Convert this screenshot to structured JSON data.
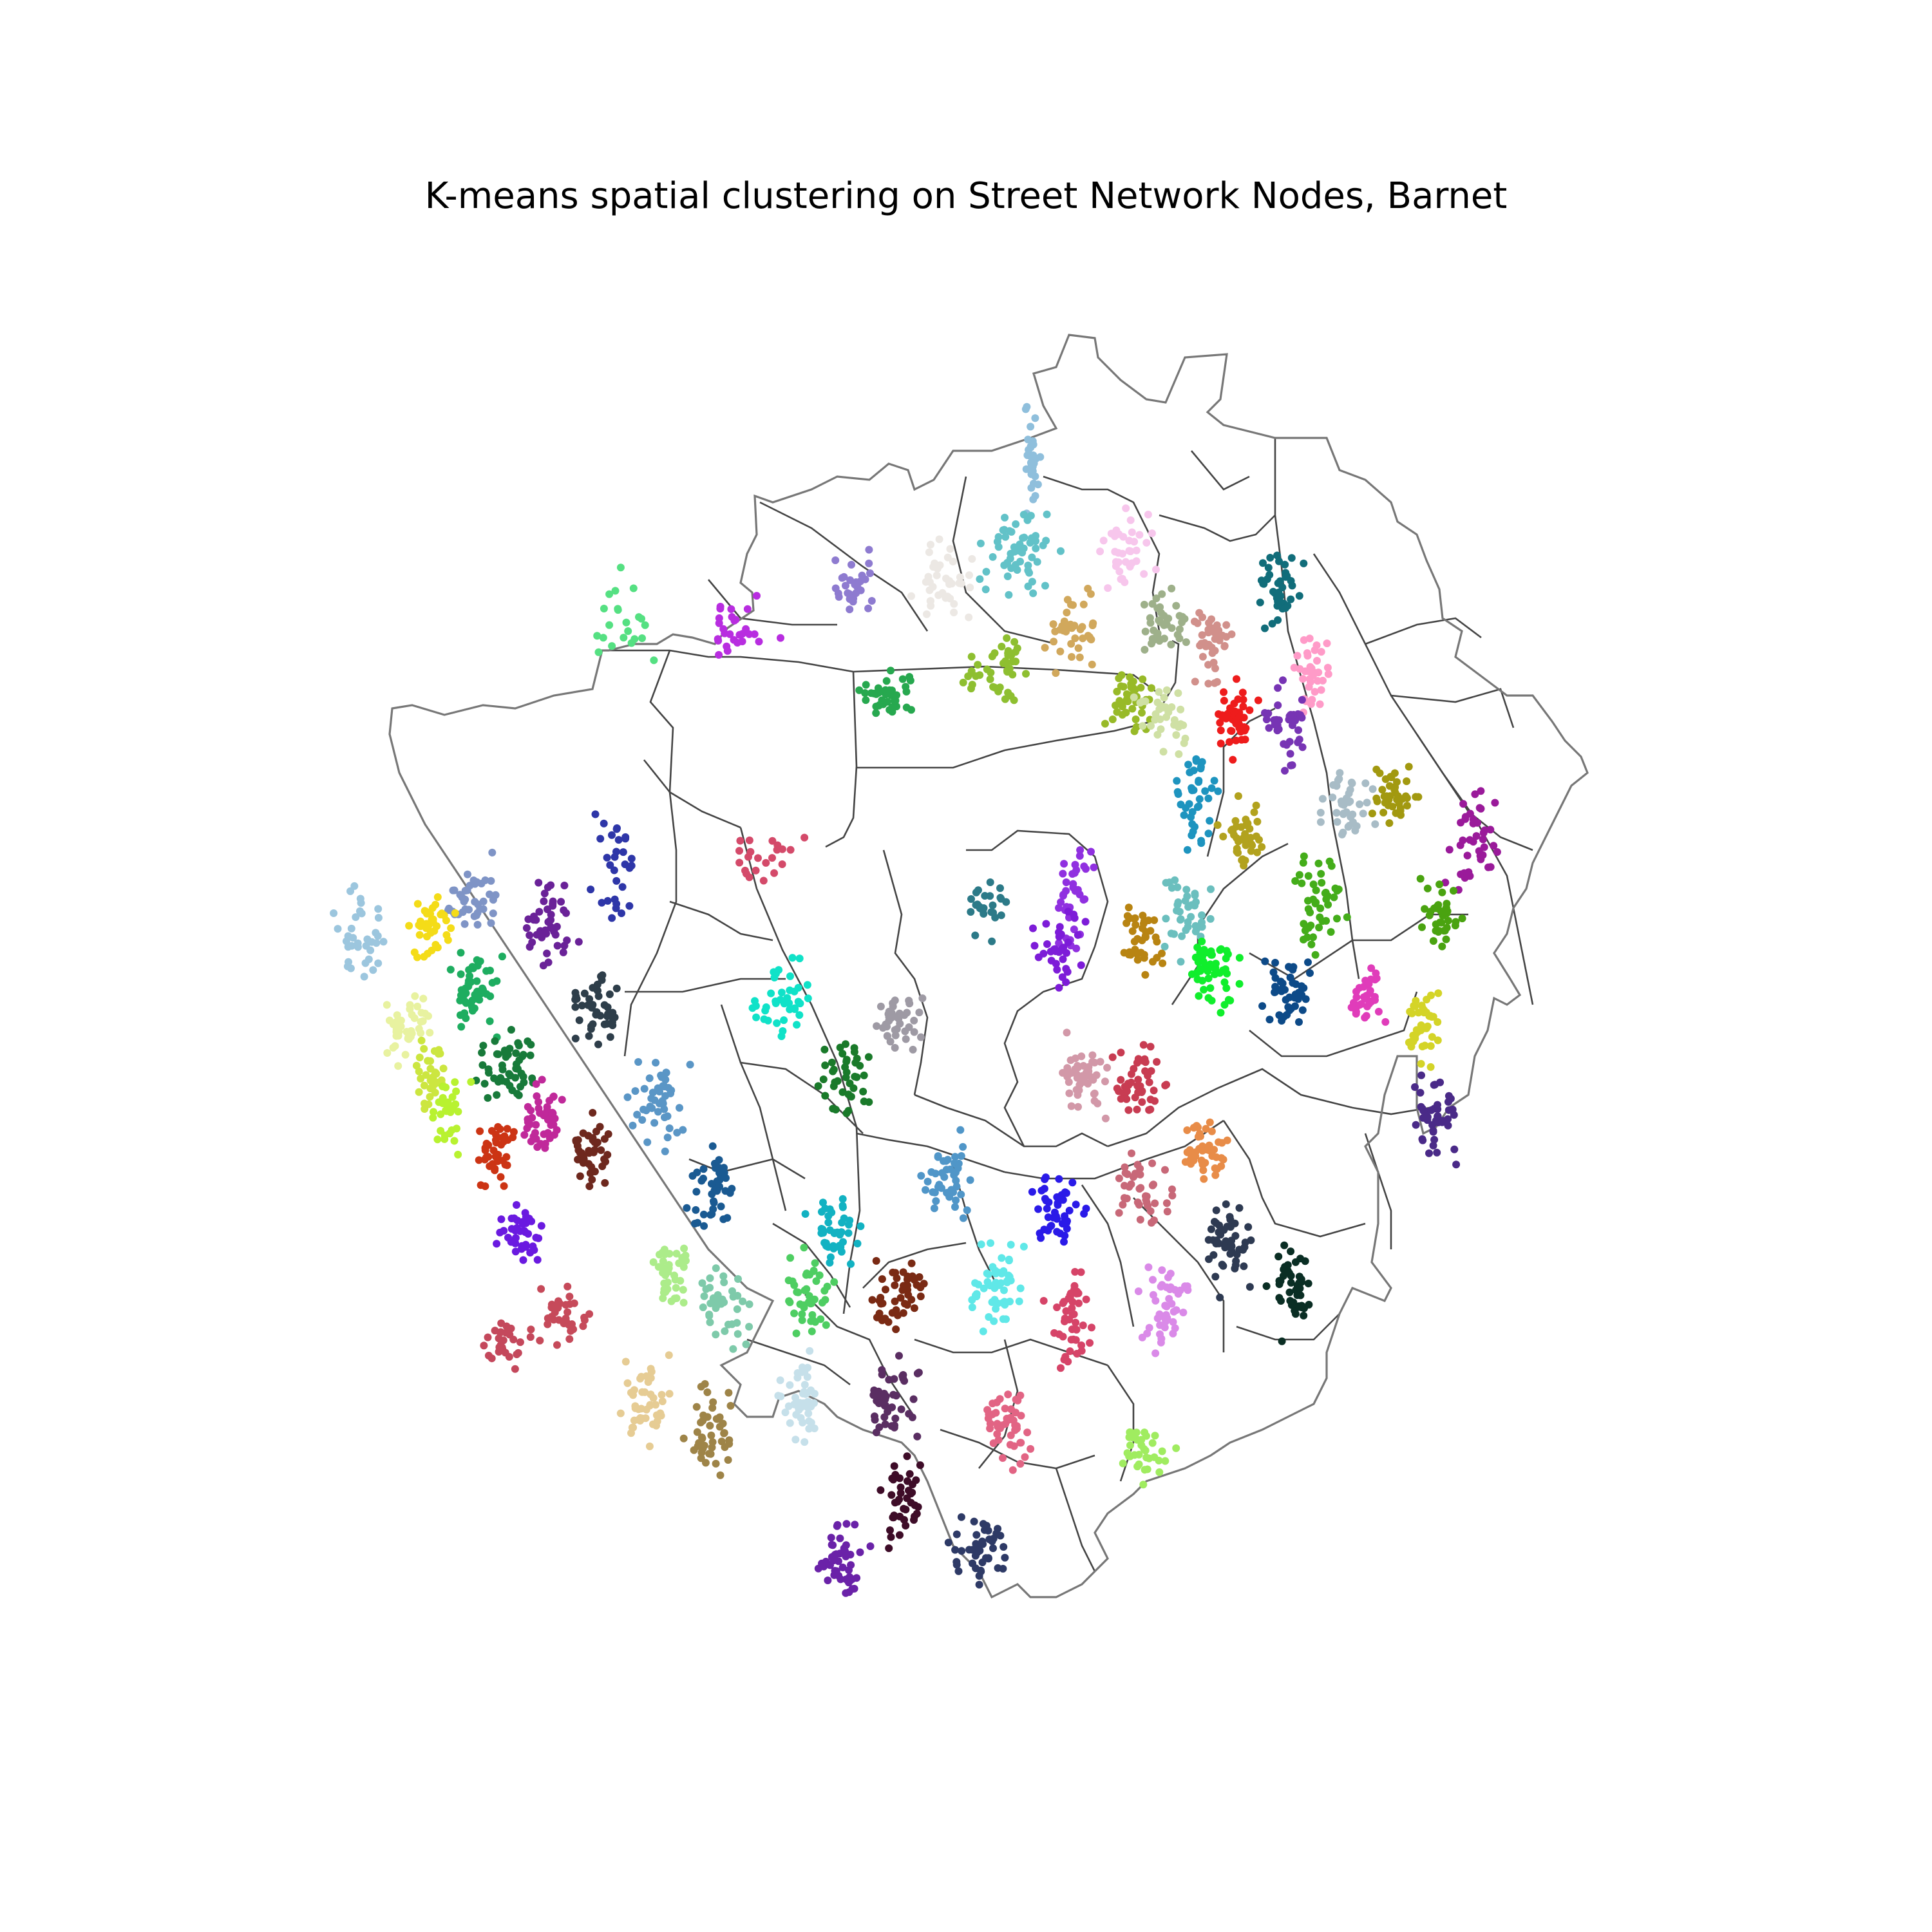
{
  "title": "K-means spatial clustering on Street Network Nodes, Barnet",
  "map": {
    "projection": "lon/lat",
    "extent": {
      "lon_min": -0.306,
      "lon_max": -0.129,
      "lat_min": 51.555,
      "lat_max": 51.671
    },
    "boundary_color": "#777777",
    "ward_line_color": "#444444",
    "marker": "filled-circle",
    "legend": "none",
    "axes": "hidden"
  },
  "clusters": [
    {
      "center": [
        -0.2111,
        51.66
      ],
      "spread": [
        0.002,
        0.0055
      ],
      "color": "#8fbfdc",
      "n": 30
    },
    {
      "center": [
        -0.2133,
        51.651
      ],
      "spread": [
        0.0055,
        0.004
      ],
      "color": "#62c2c8",
      "n": 55
    },
    {
      "center": [
        -0.1973,
        51.6515
      ],
      "spread": [
        0.0045,
        0.0035
      ],
      "color": "#f7c6ec",
      "n": 40
    },
    {
      "center": [
        -0.2244,
        51.648
      ],
      "spread": [
        0.0045,
        0.0035
      ],
      "color": "#ece8e4",
      "n": 40
    },
    {
      "center": [
        -0.2373,
        51.648
      ],
      "spread": [
        0.0035,
        0.003
      ],
      "color": "#8e7bd0",
      "n": 30
    },
    {
      "center": [
        -0.2542,
        51.644
      ],
      "spread": [
        0.006,
        0.003
      ],
      "color": "#b82de0",
      "n": 28
    },
    {
      "center": [
        -0.272,
        51.645
      ],
      "spread": [
        0.005,
        0.006
      ],
      "color": "#55e082",
      "n": 22
    },
    {
      "center": [
        -0.232,
        51.638
      ],
      "spread": [
        0.004,
        0.0025
      ],
      "color": "#27a84f",
      "n": 40
    },
    {
      "center": [
        -0.216,
        51.6405
      ],
      "spread": [
        0.005,
        0.003
      ],
      "color": "#8ebf30",
      "n": 45
    },
    {
      "center": [
        -0.205,
        51.644
      ],
      "spread": [
        0.004,
        0.0035
      ],
      "color": "#d1a85c",
      "n": 40
    },
    {
      "center": [
        -0.192,
        51.645
      ],
      "spread": [
        0.004,
        0.0035
      ],
      "color": "#9eb08a",
      "n": 40
    },
    {
      "center": [
        -0.185,
        51.643
      ],
      "spread": [
        0.0035,
        0.004
      ],
      "color": "#d1908b",
      "n": 40
    },
    {
      "center": [
        -0.175,
        51.648
      ],
      "spread": [
        0.0035,
        0.004
      ],
      "color": "#116d7a",
      "n": 40
    },
    {
      "center": [
        -0.17,
        51.64
      ],
      "spread": [
        0.003,
        0.004
      ],
      "color": "#ff9bc8",
      "n": 35
    },
    {
      "center": [
        -0.196,
        51.638
      ],
      "spread": [
        0.004,
        0.0035
      ],
      "color": "#98ba28",
      "n": 40
    },
    {
      "center": [
        -0.192,
        51.636
      ],
      "spread": [
        0.004,
        0.0035
      ],
      "color": "#cfe0a4",
      "n": 35
    },
    {
      "center": [
        -0.181,
        51.636
      ],
      "spread": [
        0.003,
        0.0035
      ],
      "color": "#ee1c1c",
      "n": 45
    },
    {
      "center": [
        -0.174,
        51.635
      ],
      "spread": [
        0.003,
        0.004
      ],
      "color": "#7734b4",
      "n": 35
    },
    {
      "center": [
        -0.187,
        51.628
      ],
      "spread": [
        0.003,
        0.005
      ],
      "color": "#1e94bf",
      "n": 40
    },
    {
      "center": [
        -0.18,
        51.625
      ],
      "spread": [
        0.0035,
        0.0035
      ],
      "color": "#b2a21e",
      "n": 40
    },
    {
      "center": [
        -0.165,
        51.628
      ],
      "spread": [
        0.004,
        0.0035
      ],
      "color": "#a8bcc6",
      "n": 40
    },
    {
      "center": [
        -0.158,
        51.629
      ],
      "spread": [
        0.004,
        0.0035
      ],
      "color": "#a29910",
      "n": 40
    },
    {
      "center": [
        -0.146,
        51.625
      ],
      "spread": [
        0.004,
        0.005
      ],
      "color": "#9a1a9a",
      "n": 40
    },
    {
      "center": [
        -0.188,
        51.618
      ],
      "spread": [
        0.004,
        0.0045
      ],
      "color": "#6bbfbe",
      "n": 40
    },
    {
      "center": [
        -0.169,
        51.619
      ],
      "spread": [
        0.004,
        0.0045
      ],
      "color": "#44ad1a",
      "n": 45
    },
    {
      "center": [
        -0.151,
        51.618
      ],
      "spread": [
        0.003,
        0.0035
      ],
      "color": "#4aa310",
      "n": 35
    },
    {
      "center": [
        -0.205,
        51.62
      ],
      "spread": [
        0.004,
        0.005
      ],
      "color": "#9030e0",
      "n": 40
    },
    {
      "center": [
        -0.207,
        51.615
      ],
      "spread": [
        0.004,
        0.004
      ],
      "color": "#7d1cd8",
      "n": 35
    },
    {
      "center": [
        -0.195,
        51.615
      ],
      "spread": [
        0.003,
        0.0035
      ],
      "color": "#b88412",
      "n": 40
    },
    {
      "center": [
        -0.185,
        51.612
      ],
      "spread": [
        0.004,
        0.004
      ],
      "color": "#10ee2c",
      "n": 50
    },
    {
      "center": [
        -0.173,
        51.611
      ],
      "spread": [
        0.004,
        0.004
      ],
      "color": "#0d4a88",
      "n": 45
    },
    {
      "center": [
        -0.162,
        51.611
      ],
      "spread": [
        0.003,
        0.0035
      ],
      "color": "#e03cba",
      "n": 35
    },
    {
      "center": [
        -0.154,
        51.608
      ],
      "spread": [
        0.003,
        0.0035
      ],
      "color": "#d4d428",
      "n": 40
    },
    {
      "center": [
        -0.152,
        51.599
      ],
      "spread": [
        0.003,
        0.0045
      ],
      "color": "#4a2a88",
      "n": 45
    },
    {
      "center": [
        -0.218,
        51.619
      ],
      "spread": [
        0.004,
        0.0035
      ],
      "color": "#2c7a88",
      "n": 25
    },
    {
      "center": [
        -0.25,
        51.624
      ],
      "spread": [
        0.006,
        0.003
      ],
      "color": "#d44a6a",
      "n": 22
    },
    {
      "center": [
        -0.272,
        51.622
      ],
      "spread": [
        0.004,
        0.005
      ],
      "color": "#2e36a8",
      "n": 30
    },
    {
      "center": [
        -0.282,
        51.617
      ],
      "spread": [
        0.004,
        0.004
      ],
      "color": "#6a2298",
      "n": 45
    },
    {
      "center": [
        -0.293,
        51.62
      ],
      "spread": [
        0.004,
        0.004
      ],
      "color": "#7f94c6",
      "n": 40
    },
    {
      "center": [
        -0.299,
        51.617
      ],
      "spread": [
        0.0035,
        0.0035
      ],
      "color": "#f4dc18",
      "n": 40
    },
    {
      "center": [
        -0.31,
        51.616
      ],
      "spread": [
        0.004,
        0.005
      ],
      "color": "#9cc6de",
      "n": 35
    },
    {
      "center": [
        -0.293,
        51.611
      ],
      "spread": [
        0.004,
        0.004
      ],
      "color": "#1ead60",
      "n": 50
    },
    {
      "center": [
        -0.288,
        51.604
      ],
      "spread": [
        0.005,
        0.004
      ],
      "color": "#187a3a",
      "n": 50
    },
    {
      "center": [
        -0.275,
        51.609
      ],
      "spread": [
        0.004,
        0.004
      ],
      "color": "#2e3e4a",
      "n": 45
    },
    {
      "center": [
        -0.303,
        51.608
      ],
      "spread": [
        0.004,
        0.0035
      ],
      "color": "#e8f2a0",
      "n": 40
    },
    {
      "center": [
        -0.299,
        51.603
      ],
      "spread": [
        0.003,
        0.0035
      ],
      "color": "#cce640",
      "n": 40
    },
    {
      "center": [
        -0.297,
        51.6
      ],
      "spread": [
        0.003,
        0.0035
      ],
      "color": "#b8f230",
      "n": 30
    },
    {
      "center": [
        -0.29,
        51.596
      ],
      "spread": [
        0.003,
        0.004
      ],
      "color": "#cc3414",
      "n": 40
    },
    {
      "center": [
        -0.283,
        51.599
      ],
      "spread": [
        0.003,
        0.004
      ],
      "color": "#c0299a",
      "n": 45
    },
    {
      "center": [
        -0.276,
        51.596
      ],
      "spread": [
        0.003,
        0.004
      ],
      "color": "#6e281e",
      "n": 45
    },
    {
      "center": [
        -0.248,
        51.61
      ],
      "spread": [
        0.005,
        0.004
      ],
      "color": "#10e2c8",
      "n": 40
    },
    {
      "center": [
        -0.231,
        51.608
      ],
      "spread": [
        0.004,
        0.003
      ],
      "color": "#9e9aa4",
      "n": 40
    },
    {
      "center": [
        -0.266,
        51.601
      ],
      "spread": [
        0.004,
        0.004
      ],
      "color": "#5a96c6",
      "n": 45
    },
    {
      "center": [
        -0.239,
        51.603
      ],
      "spread": [
        0.004,
        0.004
      ],
      "color": "#1a7a2a",
      "n": 40
    },
    {
      "center": [
        -0.258,
        51.593
      ],
      "spread": [
        0.004,
        0.004
      ],
      "color": "#1a5a92",
      "n": 45
    },
    {
      "center": [
        -0.204,
        51.603
      ],
      "spread": [
        0.004,
        0.0035
      ],
      "color": "#d298a8",
      "n": 45
    },
    {
      "center": [
        -0.195,
        51.603
      ],
      "spread": [
        0.004,
        0.0035
      ],
      "color": "#c83c52",
      "n": 45
    },
    {
      "center": [
        -0.186,
        51.596
      ],
      "spread": [
        0.004,
        0.0035
      ],
      "color": "#e88c48",
      "n": 45
    },
    {
      "center": [
        -0.195,
        51.593
      ],
      "spread": [
        0.004,
        0.0035
      ],
      "color": "#c86878",
      "n": 40
    },
    {
      "center": [
        -0.207,
        51.591
      ],
      "spread": [
        0.004,
        0.004
      ],
      "color": "#2a1ae8",
      "n": 45
    },
    {
      "center": [
        -0.223,
        51.594
      ],
      "spread": [
        0.004,
        0.004
      ],
      "color": "#5096c8",
      "n": 45
    },
    {
      "center": [
        -0.24,
        51.589
      ],
      "spread": [
        0.004,
        0.004
      ],
      "color": "#12b2c2",
      "n": 45
    },
    {
      "center": [
        -0.286,
        51.589
      ],
      "spread": [
        0.004,
        0.003
      ],
      "color": "#6a1ae0",
      "n": 40
    },
    {
      "center": [
        -0.182,
        51.588
      ],
      "spread": [
        0.004,
        0.004
      ],
      "color": "#2e3a52",
      "n": 50
    },
    {
      "center": [
        -0.173,
        51.584
      ],
      "spread": [
        0.0035,
        0.004
      ],
      "color": "#0a2e24",
      "n": 45
    },
    {
      "center": [
        -0.191,
        51.582
      ],
      "spread": [
        0.004,
        0.004
      ],
      "color": "#da8ae8",
      "n": 45
    },
    {
      "center": [
        -0.205,
        51.581
      ],
      "spread": [
        0.004,
        0.005
      ],
      "color": "#d64468",
      "n": 45
    },
    {
      "center": [
        -0.216,
        51.584
      ],
      "spread": [
        0.004,
        0.004
      ],
      "color": "#60e8e8",
      "n": 50
    },
    {
      "center": [
        -0.231,
        51.583
      ],
      "spread": [
        0.004,
        0.004
      ],
      "color": "#7a2a14",
      "n": 45
    },
    {
      "center": [
        -0.244,
        51.583
      ],
      "spread": [
        0.004,
        0.004
      ],
      "color": "#4ece62",
      "n": 45
    },
    {
      "center": [
        -0.256,
        51.582
      ],
      "spread": [
        0.004,
        0.004
      ],
      "color": "#7ecaaa",
      "n": 40
    },
    {
      "center": [
        -0.264,
        51.585
      ],
      "spread": [
        0.003,
        0.004
      ],
      "color": "#acec8a",
      "n": 40
    },
    {
      "center": [
        -0.28,
        51.581
      ],
      "spread": [
        0.004,
        0.003
      ],
      "color": "#c64a5a",
      "n": 35
    },
    {
      "center": [
        -0.289,
        51.579
      ],
      "spread": [
        0.004,
        0.003
      ],
      "color": "#c4485c",
      "n": 30
    },
    {
      "center": [
        -0.268,
        51.574
      ],
      "spread": [
        0.004,
        0.004
      ],
      "color": "#e6cc94",
      "n": 45
    },
    {
      "center": [
        -0.258,
        51.571
      ],
      "spread": [
        0.004,
        0.004
      ],
      "color": "#9e8448",
      "n": 45
    },
    {
      "center": [
        -0.245,
        51.574
      ],
      "spread": [
        0.004,
        0.004
      ],
      "color": "#c6e0ea",
      "n": 45
    },
    {
      "center": [
        -0.232,
        51.573
      ],
      "spread": [
        0.004,
        0.004
      ],
      "color": "#5a2e62",
      "n": 45
    },
    {
      "center": [
        -0.215,
        51.571
      ],
      "spread": [
        0.004,
        0.004
      ],
      "color": "#e26484",
      "n": 45
    },
    {
      "center": [
        -0.195,
        51.569
      ],
      "spread": [
        0.005,
        0.003
      ],
      "color": "#a0ec60",
      "n": 35
    },
    {
      "center": [
        -0.23,
        51.564
      ],
      "spread": [
        0.003,
        0.004
      ],
      "color": "#3e0c28",
      "n": 40
    },
    {
      "center": [
        -0.219,
        51.56
      ],
      "spread": [
        0.005,
        0.0035
      ],
      "color": "#2e3a66",
      "n": 45
    },
    {
      "center": [
        -0.239,
        51.559
      ],
      "spread": [
        0.004,
        0.004
      ],
      "color": "#6a22a8",
      "n": 45
    }
  ]
}
